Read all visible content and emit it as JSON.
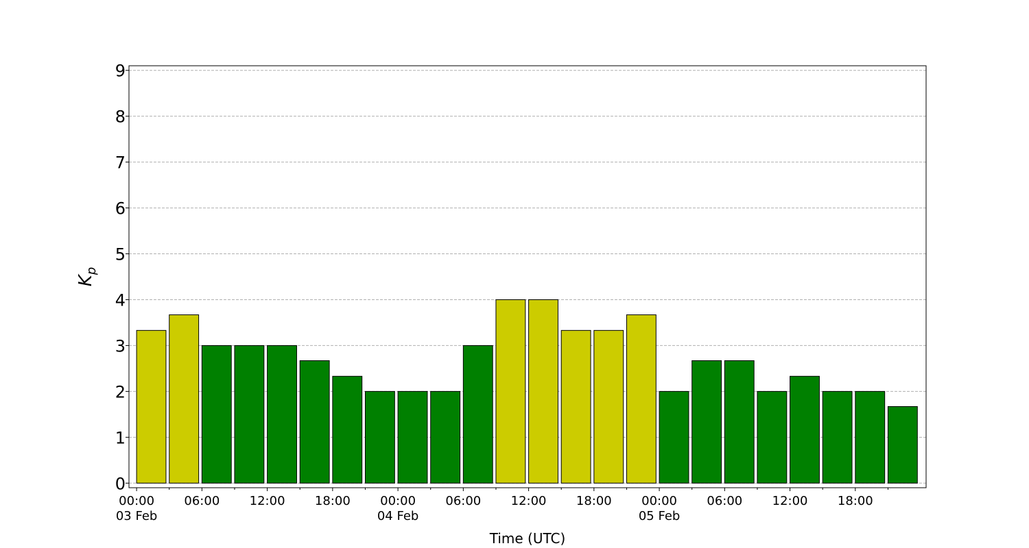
{
  "chart_data": {
    "type": "bar",
    "x": [
      0,
      3,
      6,
      9,
      12,
      15,
      18,
      21,
      24,
      27,
      30,
      33,
      36,
      39,
      42,
      45,
      48,
      51,
      54,
      57,
      60,
      63,
      66,
      69
    ],
    "values": [
      3.33,
      3.67,
      3,
      3,
      3,
      2.67,
      2.33,
      2,
      2,
      2,
      3,
      4,
      4,
      3.33,
      3.33,
      3.67,
      2,
      2.67,
      2.67,
      2,
      2.33,
      2,
      2,
      1.67
    ],
    "colors": [
      "#cccc00",
      "#cccc00",
      "#008000",
      "#008000",
      "#008000",
      "#008000",
      "#008000",
      "#008000",
      "#008000",
      "#008000",
      "#008000",
      "#cccc00",
      "#cccc00",
      "#cccc00",
      "#cccc00",
      "#cccc00",
      "#008000",
      "#008000",
      "#008000",
      "#008000",
      "#008000",
      "#008000",
      "#008000",
      "#008000"
    ],
    "xlabel": "Time (UTC)",
    "ylabel": "Kp",
    "xlim": [
      -0.7,
      72.5
    ],
    "xticks": [
      {
        "value": 0,
        "label": "00:00\n03 Feb"
      },
      {
        "value": 6,
        "label": "06:00"
      },
      {
        "value": 12,
        "label": "12:00"
      },
      {
        "value": 18,
        "label": "18:00"
      },
      {
        "value": 24,
        "label": "00:00\n04 Feb"
      },
      {
        "value": 30,
        "label": "06:00"
      },
      {
        "value": 36,
        "label": "12:00"
      },
      {
        "value": 42,
        "label": "18:00"
      },
      {
        "value": 48,
        "label": "00:00\n05 Feb"
      },
      {
        "value": 54,
        "label": "06:00"
      },
      {
        "value": 60,
        "label": "12:00"
      },
      {
        "value": 66,
        "label": "18:00"
      }
    ],
    "xminorticks": [
      3,
      9,
      15,
      21,
      27,
      33,
      39,
      45,
      51,
      57,
      63,
      69
    ],
    "ylim": [
      -0.1,
      9.1
    ],
    "yticks": [
      0,
      1,
      2,
      3,
      4,
      5,
      6,
      7,
      8,
      9
    ],
    "grid": true
  }
}
